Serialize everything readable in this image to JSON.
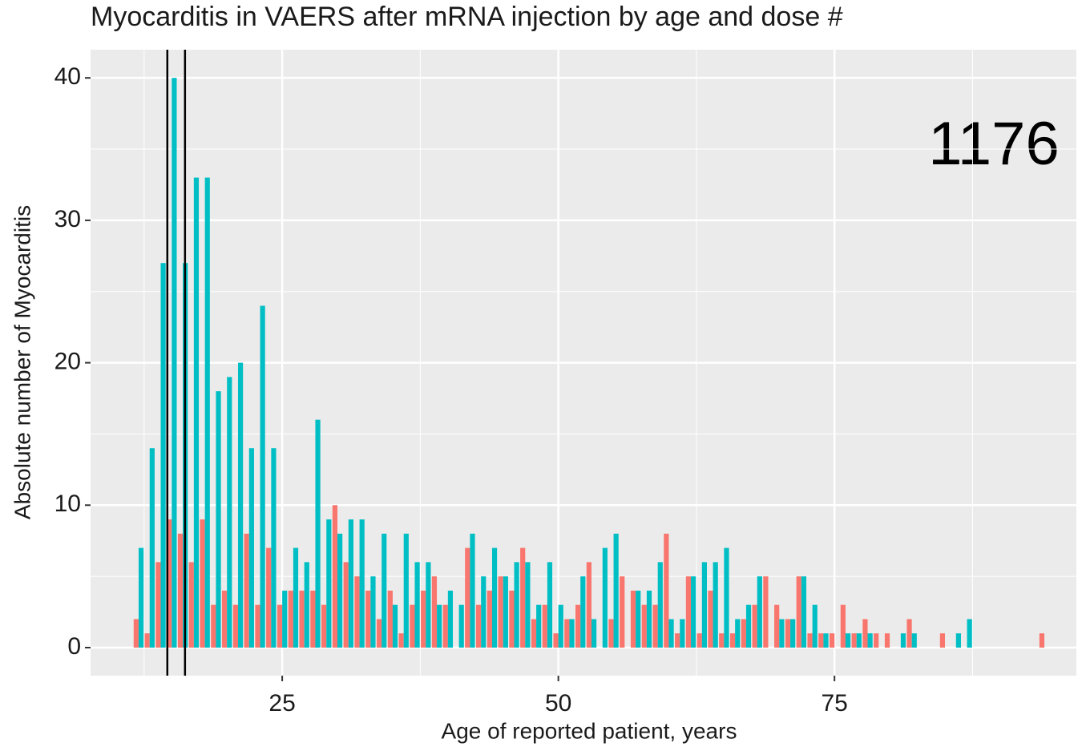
{
  "chart_data": {
    "type": "bar",
    "title": "Myocarditis in VAERS after mRNA injection by age and dose #",
    "x_label": "Age of reported patient, years",
    "y_label": "Absolute number of Myocarditis",
    "annotation": "1176",
    "x": [
      12,
      13,
      14,
      15,
      16,
      17,
      18,
      19,
      20,
      21,
      22,
      23,
      24,
      25,
      26,
      27,
      28,
      29,
      30,
      31,
      32,
      33,
      34,
      35,
      36,
      37,
      38,
      39,
      40,
      41,
      42,
      43,
      44,
      45,
      46,
      47,
      48,
      49,
      50,
      51,
      52,
      53,
      54,
      55,
      56,
      57,
      58,
      59,
      60,
      61,
      62,
      63,
      64,
      65,
      66,
      67,
      68,
      69,
      70,
      71,
      72,
      73,
      74,
      75,
      76,
      77,
      78,
      79,
      80,
      81,
      82,
      83,
      84,
      85,
      86,
      87,
      88,
      89,
      90,
      91,
      92,
      93,
      94
    ],
    "series": [
      {
        "color": "#F8766D",
        "values": [
          2,
          1,
          6,
          9,
          8,
          6,
          9,
          3,
          4,
          3,
          8,
          3,
          7,
          3,
          4,
          4,
          4,
          3,
          10,
          6,
          5,
          4,
          2,
          4,
          1,
          3,
          4,
          5,
          3,
          0,
          7,
          3,
          4,
          5,
          4,
          7,
          2,
          3,
          1,
          2,
          3,
          6,
          0,
          2,
          5,
          4,
          3,
          3,
          8,
          1,
          5,
          1,
          4,
          1,
          1,
          2,
          3,
          5,
          3,
          2,
          5,
          1,
          1,
          1,
          3,
          1,
          2,
          1,
          1,
          0,
          2,
          0,
          0,
          1,
          0,
          0,
          0,
          0,
          0,
          0,
          0,
          0,
          1
        ]
      },
      {
        "color": "#00BFC4",
        "values": [
          7,
          14,
          27,
          40,
          27,
          33,
          33,
          18,
          19,
          20,
          14,
          24,
          14,
          4,
          7,
          6,
          16,
          9,
          8,
          9,
          9,
          5,
          8,
          3,
          8,
          6,
          6,
          3,
          4,
          3,
          8,
          5,
          7,
          5,
          6,
          6,
          3,
          6,
          3,
          2,
          5,
          2,
          7,
          8,
          0,
          4,
          4,
          6,
          2,
          2,
          5,
          6,
          6,
          7,
          2,
          3,
          5,
          0,
          2,
          2,
          5,
          3,
          1,
          0,
          1,
          1,
          1,
          0,
          0,
          1,
          1,
          0,
          0,
          0,
          1,
          2,
          0,
          0,
          0,
          0,
          0,
          0,
          0
        ]
      }
    ],
    "vlines": [
      14.6,
      16.2
    ],
    "xlim": [
      7.65,
      96.9
    ],
    "ylim": [
      -1.97,
      41.98
    ],
    "xticks": [
      25,
      50,
      75
    ],
    "yticks": [
      0,
      10,
      20,
      30,
      40
    ],
    "xminor": [
      12.5,
      37.5,
      62.5,
      87.5
    ],
    "yminor": [
      5,
      15,
      25,
      35
    ],
    "grid": true
  }
}
